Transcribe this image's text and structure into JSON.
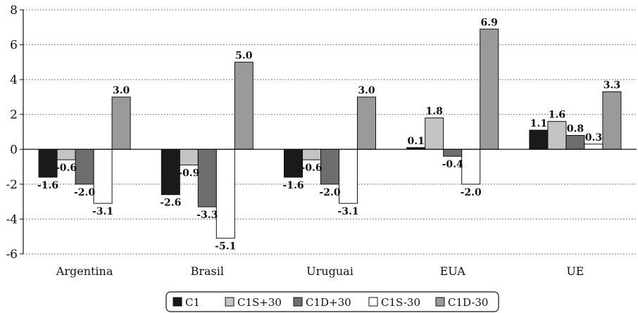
{
  "chart_data": {
    "type": "bar",
    "title": "",
    "xlabel": "",
    "ylabel": "",
    "ylim": [
      -6,
      8
    ],
    "yticks": [
      -6,
      -4,
      -2,
      0,
      2,
      4,
      6,
      8
    ],
    "ytick_labels": [
      "-6",
      "-4",
      "-2",
      "0",
      "2",
      "4",
      "6",
      "8"
    ],
    "grid": "horizontal dotted",
    "legend_position": "bottom",
    "categories": [
      "Argentina",
      "Brasil",
      "Uruguai",
      "EUA",
      "UE"
    ],
    "series": [
      {
        "name": "C1",
        "color": "#1a1a1a",
        "values": [
          -1.6,
          -2.6,
          -1.6,
          0.1,
          1.1
        ],
        "labels": [
          "-1.6",
          "-2.6",
          "-1.6",
          "0.1",
          "1.1"
        ]
      },
      {
        "name": "C1S+30",
        "color": "#c4c4c4",
        "values": [
          -0.6,
          -0.9,
          -0.6,
          1.8,
          1.6
        ],
        "labels": [
          "-0.6",
          "-0.9",
          "-0.6",
          "1.8",
          "1.6"
        ]
      },
      {
        "name": "C1D+30",
        "color": "#6e6e6e",
        "values": [
          -2.0,
          -3.3,
          -2.0,
          -0.4,
          0.8
        ],
        "labels": [
          "-2.0",
          "-3.3",
          "-2.0",
          "-0.4",
          "0.8"
        ]
      },
      {
        "name": "C1S-30",
        "color": "#ffffff",
        "values": [
          -3.1,
          -5.1,
          -3.1,
          -2.0,
          0.3
        ],
        "labels": [
          "-3.1",
          "-5.1",
          "-3.1",
          "-2.0",
          "0.3"
        ]
      },
      {
        "name": "C1D-30",
        "color": "#9a9a9a",
        "values": [
          3.0,
          5.0,
          3.0,
          6.9,
          3.3
        ],
        "labels": [
          "3.0",
          "5.0",
          "3.0",
          "6.9",
          "3.3"
        ]
      }
    ]
  }
}
